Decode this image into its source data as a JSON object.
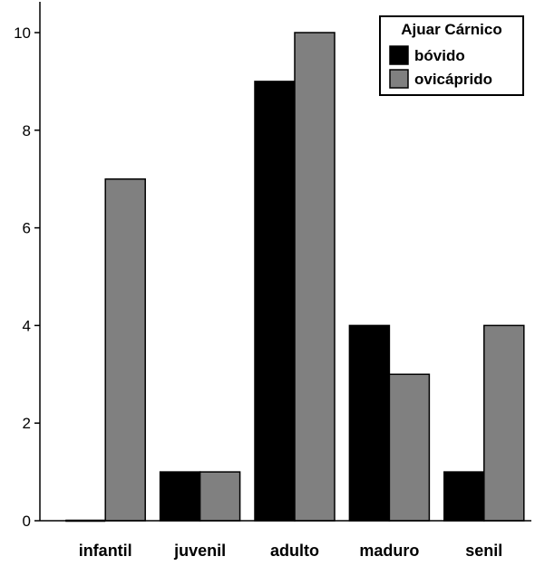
{
  "chart_data": {
    "type": "bar",
    "categories": [
      "infantil",
      "juvenil",
      "adulto",
      "maduro",
      "senil"
    ],
    "series": [
      {
        "name": "bóvido",
        "values": [
          0,
          1,
          9,
          4,
          1
        ],
        "color": "#000000"
      },
      {
        "name": "ovicáprido",
        "values": [
          7,
          1,
          10,
          3,
          4
        ],
        "color": "#808080"
      }
    ],
    "legend": {
      "title": "Ajuar Cárnico",
      "position": "top-right"
    },
    "ylim": [
      0,
      10
    ],
    "yticks": [
      0,
      2,
      4,
      6,
      8,
      10
    ],
    "grid": false,
    "xlabel": "",
    "ylabel": ""
  }
}
